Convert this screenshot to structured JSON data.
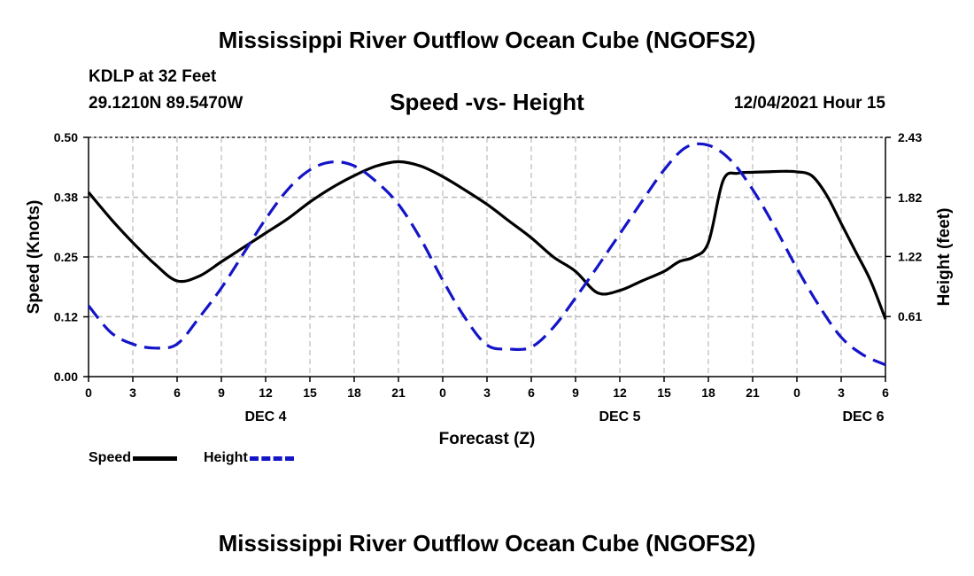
{
  "title": "Mississippi River Outflow Ocean Cube (NGOFS2)",
  "footer_title": "Mississippi River Outflow Ocean Cube (NGOFS2)",
  "station": "KDLP at 32 Feet",
  "coordinates": "29.1210N  89.5470W",
  "subtitle": "Speed -vs- Height",
  "datetime": "12/04/2021 Hour 15",
  "legend": {
    "speed": "Speed",
    "height": "Height"
  },
  "colors": {
    "speed": "#000000",
    "height": "#1414c8",
    "grid": "#bbbbbb"
  },
  "chart_data": {
    "type": "line",
    "title": "Speed -vs- Height",
    "xlabel": "Forecast (Z)",
    "ylabel": "Speed (Knots)",
    "y2label": "Height (feet)",
    "xlim": [
      0,
      54
    ],
    "ylim": [
      0,
      0.5
    ],
    "y2lim": [
      0,
      2.43
    ],
    "x_ticks": [
      {
        "x": 0,
        "label": "0"
      },
      {
        "x": 3,
        "label": "3"
      },
      {
        "x": 6,
        "label": "6"
      },
      {
        "x": 9,
        "label": "9"
      },
      {
        "x": 12,
        "label": "12"
      },
      {
        "x": 15,
        "label": "15"
      },
      {
        "x": 18,
        "label": "18"
      },
      {
        "x": 21,
        "label": "21"
      },
      {
        "x": 24,
        "label": "0"
      },
      {
        "x": 27,
        "label": "3"
      },
      {
        "x": 30,
        "label": "6"
      },
      {
        "x": 33,
        "label": "9"
      },
      {
        "x": 36,
        "label": "12"
      },
      {
        "x": 39,
        "label": "15"
      },
      {
        "x": 42,
        "label": "18"
      },
      {
        "x": 45,
        "label": "21"
      },
      {
        "x": 48,
        "label": "0"
      },
      {
        "x": 51,
        "label": "3"
      },
      {
        "x": 54,
        "label": "6"
      }
    ],
    "date_labels": [
      {
        "x": 12,
        "label": "DEC 4"
      },
      {
        "x": 36,
        "label": "DEC 5"
      },
      {
        "x": 52.5,
        "label": "DEC 6"
      }
    ],
    "y_ticks": [
      {
        "v": 0.0,
        "label": "0.00"
      },
      {
        "v": 0.125,
        "label": "0.12"
      },
      {
        "v": 0.25,
        "label": "0.25"
      },
      {
        "v": 0.375,
        "label": "0.38"
      },
      {
        "v": 0.5,
        "label": "0.50"
      }
    ],
    "y2_ticks": [
      {
        "v": 0.61,
        "label": "0.61"
      },
      {
        "v": 1.22,
        "label": "1.22"
      },
      {
        "v": 1.82,
        "label": "1.82"
      },
      {
        "v": 2.43,
        "label": "2.43"
      }
    ],
    "series": [
      {
        "name": "Speed",
        "axis": "left",
        "style": "solid",
        "x": [
          0,
          1.5,
          3,
          4.5,
          6,
          7.5,
          9,
          10.5,
          12,
          13.5,
          15,
          16.5,
          18,
          19.5,
          21,
          22.5,
          24,
          25.5,
          27,
          28.5,
          30,
          31.5,
          33,
          34.5,
          36,
          37.5,
          39,
          40,
          41,
          42,
          43,
          44,
          45,
          46,
          47,
          48,
          49,
          50,
          51,
          52,
          53,
          54
        ],
        "values": [
          0.385,
          0.33,
          0.28,
          0.235,
          0.2,
          0.21,
          0.24,
          0.27,
          0.3,
          0.33,
          0.365,
          0.395,
          0.42,
          0.44,
          0.449,
          0.44,
          0.418,
          0.39,
          0.36,
          0.325,
          0.29,
          0.25,
          0.22,
          0.175,
          0.18,
          0.2,
          0.22,
          0.24,
          0.25,
          0.28,
          0.41,
          0.425,
          0.427,
          0.428,
          0.429,
          0.428,
          0.42,
          0.38,
          0.32,
          0.26,
          0.2,
          0.12
        ]
      },
      {
        "name": "Height",
        "axis": "right",
        "style": "dashed",
        "x": [
          0,
          1.5,
          3,
          4.5,
          6,
          7.5,
          9,
          10.5,
          12,
          13.5,
          15,
          16.5,
          18,
          19.5,
          21,
          22.5,
          24,
          25.5,
          27,
          28.5,
          30,
          31.5,
          33,
          34.5,
          36,
          37.5,
          39,
          40.5,
          42,
          43.5,
          45,
          46.5,
          48,
          49.5,
          51,
          52.5,
          54
        ],
        "values": [
          0.72,
          0.45,
          0.33,
          0.29,
          0.33,
          0.6,
          0.9,
          1.25,
          1.6,
          1.9,
          2.1,
          2.18,
          2.14,
          1.98,
          1.75,
          1.4,
          0.98,
          0.6,
          0.32,
          0.28,
          0.3,
          0.5,
          0.8,
          1.12,
          1.45,
          1.78,
          2.1,
          2.33,
          2.35,
          2.2,
          1.9,
          1.52,
          1.1,
          0.72,
          0.4,
          0.22,
          0.12
        ]
      }
    ]
  }
}
